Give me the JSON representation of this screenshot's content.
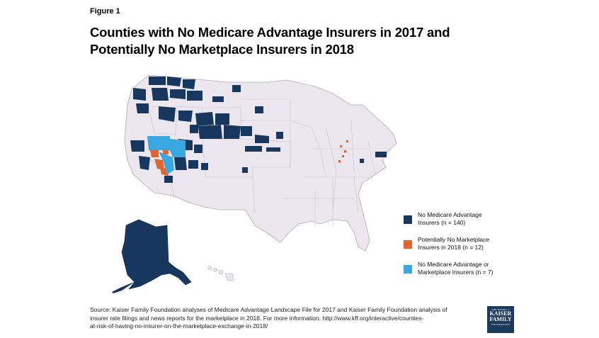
{
  "figure_label": "Figure 1",
  "title_lines": [
    "Counties with No Medicare Advantage Insurers in 2017 and",
    "Potentially No Marketplace Insurers in 2018"
  ],
  "legend": [
    {
      "lines": [
        "No Medicare Advantage",
        "Insurers (n = 140)"
      ],
      "color": "#17375e"
    },
    {
      "lines": [
        "Potentially No Marketplace",
        "Insurers in 2018  (n = 12)"
      ],
      "color": "#e3632d"
    },
    {
      "lines": [
        "No Medicare Advantage or",
        "Marketplace Insurers (n = 7)"
      ],
      "color": "#3aa8e0"
    }
  ],
  "source_lines": [
    "Source:  Kaiser Family Foundation analyses of Medicare Advantage Landscape File for 2017 and Kaiser Family Foundation analysis of",
    "insurer rate filings and news reports for the marketplace in 2018.  For more information:  http://www.kff.org/interactive/counties-",
    "at-risk-of-having-no-insurer-on-the-marketplace-exchange-in-2018/"
  ],
  "logo": {
    "line1": "THE HENRY J.",
    "line2a": "KAISER",
    "line2b": "FAMILY",
    "line3": "FOUNDATION"
  },
  "colors": {
    "land": "#ece6ee",
    "border": "#b0a9b4",
    "no_ma": "#17375e",
    "no_market": "#e3632d",
    "both": "#3aa8e0"
  }
}
